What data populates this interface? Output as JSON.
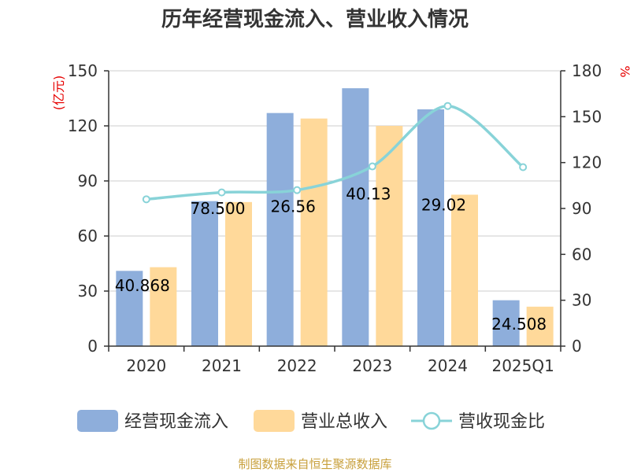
{
  "chart_data": {
    "type": "bar",
    "title": "历年经营现金流入、营业收入情况",
    "categories": [
      "2020",
      "2021",
      "2022",
      "2023",
      "2024",
      "2025Q1"
    ],
    "y_left": {
      "unit": "(亿元)",
      "range": [
        0,
        150
      ],
      "ticks": [
        "0",
        "30",
        "60",
        "90",
        "120",
        "150"
      ]
    },
    "y_right": {
      "unit": "%",
      "range": [
        0,
        180
      ],
      "ticks": [
        "0",
        "30",
        "60",
        "90",
        "120",
        "150",
        "180"
      ]
    },
    "series": [
      {
        "name": "经营现金流入",
        "type": "bar",
        "axis": "left",
        "color": "#8eaedb",
        "values": [
          41,
          79,
          127,
          140.5,
          129,
          25
        ]
      },
      {
        "name": "营业总收入",
        "type": "bar",
        "axis": "left",
        "color": "#ffd99a",
        "values": [
          43,
          78.5,
          124,
          120,
          82.5,
          21.5
        ]
      },
      {
        "name": "营收现金比",
        "type": "line",
        "axis": "right",
        "color": "#88d3d8",
        "values": [
          96,
          100.5,
          102,
          117.5,
          157,
          117
        ]
      }
    ],
    "bar_labels": [
      "40.868",
      "78.500",
      "26.56",
      "40.13",
      "29.02",
      "24.508"
    ],
    "bar_label_values": [
      33,
      75,
      76,
      83,
      77,
      12
    ],
    "grid": true,
    "legend_position": "bottom"
  },
  "source": "制图数据来自恒生聚源数据库"
}
